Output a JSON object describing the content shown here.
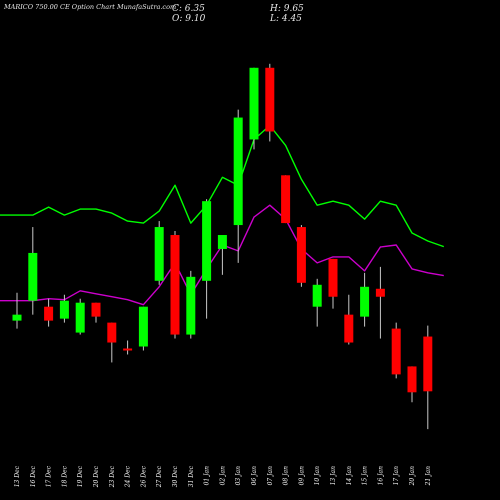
{
  "header": {
    "title": "MARICO 750.00 CE Option  Chart MunafaSutra.com",
    "close_label": "C: 6.35",
    "open_label": "O: 9.10",
    "high_label": "H: 9.65",
    "low_label": "L: 4.45"
  },
  "colors": {
    "background": "#000000",
    "bull": "#00ff00",
    "bear": "#ff0000",
    "wick": "#c8c8c8",
    "line_upper": "#00ff00",
    "line_lower": "#cc00cc",
    "text": "#ffffff"
  },
  "chart_data": {
    "type": "candlestick",
    "title": "MARICO 750.00 CE Option  Chart MunafaSutra.com",
    "categories": [
      "13 Dec",
      "16 Dec",
      "17 Dec",
      "18 Dec",
      "19 Dec",
      "20 Dec",
      "23 Dec",
      "24 Dec",
      "26 Dec",
      "27 Dec",
      "30 Dec",
      "31 Dec",
      "01 Jan",
      "02 Jan",
      "03 Jan",
      "06 Jan",
      "07 Jan",
      "08 Jan",
      "09 Jan",
      "10 Jan",
      "13 Jan",
      "14 Jan",
      "15 Jan",
      "16 Jan",
      "17 Jan",
      "20 Jan",
      "21 Jan"
    ],
    "ylim": [
      3,
      25
    ],
    "grid": false,
    "candles": [
      {
        "o": 9.9,
        "h": 11.3,
        "l": 9.5,
        "c": 10.2
      },
      {
        "o": 10.9,
        "h": 14.6,
        "l": 10.2,
        "c": 13.3
      },
      {
        "o": 10.6,
        "h": 11.0,
        "l": 9.6,
        "c": 9.9
      },
      {
        "o": 10.0,
        "h": 11.2,
        "l": 9.8,
        "c": 10.9
      },
      {
        "o": 9.3,
        "h": 11.0,
        "l": 9.2,
        "c": 10.8
      },
      {
        "o": 10.8,
        "h": 10.8,
        "l": 9.8,
        "c": 10.1
      },
      {
        "o": 9.8,
        "h": 9.8,
        "l": 7.8,
        "c": 8.8
      },
      {
        "o": 8.5,
        "h": 8.9,
        "l": 8.2,
        "c": 8.4
      },
      {
        "o": 8.6,
        "h": 10.6,
        "l": 8.4,
        "c": 10.6
      },
      {
        "o": 11.9,
        "h": 14.9,
        "l": 11.7,
        "c": 14.6
      },
      {
        "o": 14.2,
        "h": 14.4,
        "l": 9.0,
        "c": 9.2
      },
      {
        "o": 9.2,
        "h": 12.4,
        "l": 9.0,
        "c": 12.1
      },
      {
        "o": 11.9,
        "h": 16.0,
        "l": 10.0,
        "c": 15.9
      },
      {
        "o": 13.5,
        "h": 14.0,
        "l": 12.2,
        "c": 14.2
      },
      {
        "o": 14.7,
        "h": 20.5,
        "l": 12.8,
        "c": 20.1
      },
      {
        "o": 19.0,
        "h": 22.6,
        "l": 18.5,
        "c": 22.6
      },
      {
        "o": 22.6,
        "h": 22.8,
        "l": 18.9,
        "c": 19.4
      },
      {
        "o": 17.2,
        "h": 17.2,
        "l": 14.8,
        "c": 14.8
      },
      {
        "o": 14.6,
        "h": 14.7,
        "l": 11.6,
        "c": 11.8
      },
      {
        "o": 10.6,
        "h": 12.0,
        "l": 9.6,
        "c": 11.7
      },
      {
        "o": 13.0,
        "h": 13.0,
        "l": 10.5,
        "c": 11.1
      },
      {
        "o": 10.2,
        "h": 11.2,
        "l": 8.7,
        "c": 8.8
      },
      {
        "o": 10.1,
        "h": 12.3,
        "l": 9.6,
        "c": 11.6
      },
      {
        "o": 11.5,
        "h": 12.6,
        "l": 9.0,
        "c": 11.1
      },
      {
        "o": 9.5,
        "h": 9.8,
        "l": 7.0,
        "c": 7.2
      },
      {
        "o": 7.6,
        "h": 7.6,
        "l": 5.8,
        "c": 6.3
      },
      {
        "o": 9.1,
        "h": 9.65,
        "l": 4.45,
        "c": 6.35
      }
    ],
    "series": [
      {
        "values": [
          15.2,
          15.2,
          15.6,
          15.2,
          15.5,
          15.5,
          15.3,
          14.9,
          14.8,
          15.4,
          16.7,
          14.8,
          15.7,
          17.1,
          16.7,
          19.0,
          19.7,
          18.7,
          17.0,
          15.7,
          15.9,
          15.7,
          15.0,
          15.9,
          15.7,
          14.3,
          13.9
        ]
      },
      {
        "values": [
          10.9,
          10.9,
          11.0,
          10.95,
          11.4,
          11.25,
          11.1,
          10.95,
          10.7,
          11.6,
          12.8,
          11.2,
          12.5,
          13.7,
          13.4,
          15.1,
          15.7,
          15.0,
          13.5,
          12.8,
          13.1,
          13.1,
          12.4,
          13.6,
          13.7,
          12.5,
          12.3
        ]
      }
    ]
  }
}
